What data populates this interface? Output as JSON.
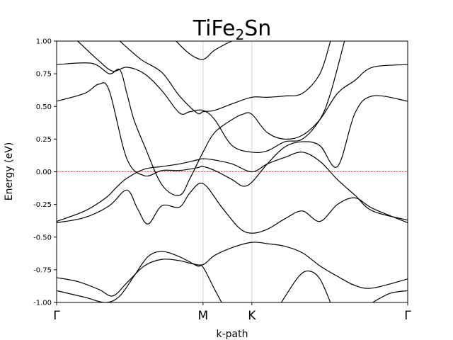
{
  "chart_data": {
    "type": "line",
    "title": "TiFe",
    "title_sub": "2",
    "title_tail": "Sn",
    "xlabel": "k-path",
    "ylabel": "Energy (eV)",
    "xlim": [
      0,
      1
    ],
    "ylim": [
      -1.0,
      1.0
    ],
    "yticks": [
      "-1.00",
      "-0.75",
      "-0.50",
      "-0.25",
      "0.00",
      "0.25",
      "0.50",
      "0.75",
      "1.00"
    ],
    "ytick_values": [
      -1.0,
      -0.75,
      -0.5,
      -0.25,
      0.0,
      0.25,
      0.5,
      0.75,
      1.0
    ],
    "kpoints": [
      {
        "label": "Γ",
        "x": 0.0
      },
      {
        "label": "M",
        "x": 0.417
      },
      {
        "label": "K",
        "x": 0.556
      },
      {
        "label": "Γ",
        "x": 1.0
      }
    ],
    "fermi_level": 0.0,
    "fermi_color": "#ff0000",
    "band_color": "#000000",
    "kline_color": "#d3d3d3",
    "grid": false,
    "series": [
      {
        "x": [
          0.0,
          0.08,
          0.14,
          0.17,
          0.2,
          0.25,
          0.3,
          0.35,
          0.4,
          0.417,
          0.45,
          0.5,
          0.556,
          0.6,
          0.65,
          0.7,
          0.75,
          0.8,
          0.85,
          0.9,
          1.0
        ],
        "y": [
          -0.38,
          -0.3,
          -0.2,
          -0.12,
          -0.05,
          0.02,
          0.04,
          0.06,
          0.09,
          0.1,
          0.09,
          0.06,
          0.0,
          0.06,
          0.11,
          0.15,
          0.08,
          -0.06,
          -0.18,
          -0.3,
          -0.37
        ]
      },
      {
        "x": [
          0.0,
          0.08,
          0.15,
          0.2,
          0.23,
          0.26,
          0.3,
          0.35,
          0.38,
          0.417,
          0.47,
          0.52,
          0.556,
          0.6,
          0.65,
          0.7,
          0.75,
          0.8,
          0.85,
          0.9,
          1.0
        ],
        "y": [
          -0.39,
          -0.35,
          -0.26,
          -0.14,
          -0.28,
          -0.4,
          -0.26,
          -0.27,
          -0.16,
          -0.09,
          -0.27,
          -0.43,
          -0.47,
          -0.44,
          -0.36,
          -0.3,
          -0.38,
          -0.25,
          -0.2,
          -0.28,
          -0.39
        ]
      },
      {
        "x": [
          0.0,
          0.08,
          0.12,
          0.15,
          0.2,
          0.25,
          0.3,
          0.35,
          0.4,
          0.417,
          0.45,
          0.5,
          0.53,
          0.556,
          0.6,
          0.65,
          0.7,
          0.75,
          0.8,
          0.85,
          0.9,
          1.0
        ],
        "y": [
          0.54,
          0.6,
          0.67,
          0.62,
          0.1,
          -0.03,
          0.01,
          0.01,
          0.03,
          0.04,
          0.01,
          -0.06,
          -0.11,
          -0.08,
          0.06,
          0.19,
          0.23,
          0.2,
          0.04,
          0.45,
          0.58,
          0.54
        ]
      },
      {
        "x": [
          0.0,
          0.1,
          0.15,
          0.18,
          0.2,
          0.22,
          0.25,
          0.3,
          0.35,
          0.38,
          0.417,
          0.45,
          0.5,
          0.53,
          0.556,
          0.6,
          0.65,
          0.7,
          0.75,
          0.8,
          0.85,
          0.9,
          1.0
        ],
        "y": [
          0.82,
          0.83,
          0.75,
          0.78,
          0.6,
          0.4,
          0.2,
          -0.1,
          -0.18,
          -0.05,
          0.15,
          0.3,
          0.4,
          0.44,
          0.44,
          0.3,
          0.25,
          0.28,
          0.4,
          0.6,
          0.7,
          0.8,
          0.82
        ]
      },
      {
        "x": [
          0.06,
          0.12,
          0.16,
          0.2,
          0.25,
          0.3,
          0.35,
          0.38,
          0.417,
          0.45,
          0.5,
          0.556,
          0.6,
          0.65,
          0.7,
          0.75,
          0.78,
          0.82
        ],
        "y": [
          1.0,
          0.85,
          0.77,
          0.8,
          0.75,
          0.62,
          0.45,
          0.46,
          0.47,
          0.4,
          0.2,
          0.15,
          0.16,
          0.23,
          0.25,
          0.4,
          0.6,
          1.0
        ]
      },
      {
        "x": [
          0.18,
          0.24,
          0.3,
          0.35,
          0.4,
          0.417,
          0.45,
          0.5,
          0.556,
          0.6,
          0.65,
          0.7,
          0.75,
          0.78
        ],
        "y": [
          1.0,
          0.86,
          0.76,
          0.58,
          0.45,
          0.46,
          0.47,
          0.52,
          0.57,
          0.57,
          0.58,
          0.6,
          0.75,
          1.0
        ]
      },
      {
        "x": [
          0.34,
          0.38,
          0.417,
          0.45,
          0.5,
          0.52
        ],
        "y": [
          1.0,
          0.9,
          0.86,
          0.93,
          1.0,
          1.0
        ]
      },
      {
        "x": [
          0.0,
          0.06,
          0.12,
          0.16,
          0.2,
          0.25,
          0.3,
          0.35,
          0.38,
          0.417,
          0.45,
          0.5,
          0.556,
          0.6,
          0.65,
          0.7,
          0.75,
          0.8,
          0.85,
          0.9,
          1.0
        ],
        "y": [
          -0.81,
          -0.84,
          -0.9,
          -0.95,
          -0.85,
          -0.72,
          -0.67,
          -0.68,
          -0.7,
          -0.71,
          -0.64,
          -0.58,
          -0.54,
          -0.55,
          -0.57,
          -0.62,
          -0.72,
          -0.8,
          -0.87,
          -0.89,
          -0.82
        ]
      },
      {
        "x": [
          0.0,
          0.08,
          0.14,
          0.18,
          0.22,
          0.26,
          0.3,
          0.35,
          0.4,
          0.417,
          0.45,
          0.47
        ],
        "y": [
          -0.91,
          -0.96,
          -1.0,
          -0.95,
          -0.8,
          -0.65,
          -0.61,
          -0.65,
          -0.72,
          -0.73,
          -0.9,
          -1.0
        ]
      },
      {
        "x": [
          0.64,
          0.69,
          0.72,
          0.75,
          0.78
        ],
        "y": [
          -1.0,
          -0.8,
          -0.76,
          -0.82,
          -1.0
        ]
      },
      {
        "x": [
          0.9,
          0.95,
          1.0
        ],
        "y": [
          -1.0,
          -0.93,
          -0.91
        ]
      }
    ]
  }
}
